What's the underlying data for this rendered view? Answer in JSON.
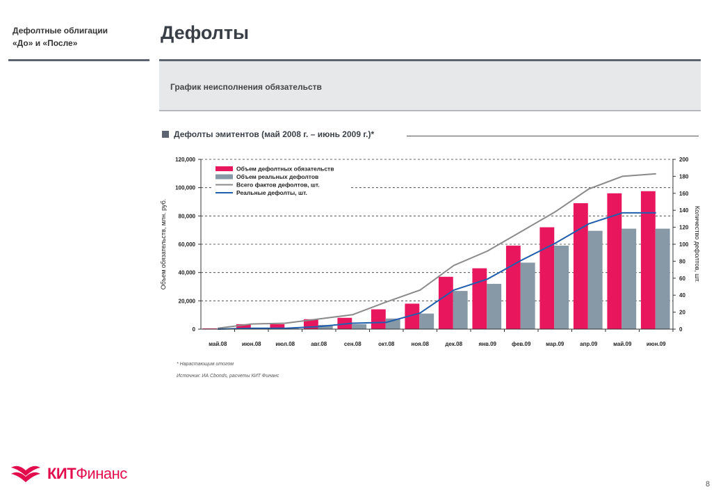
{
  "header": {
    "section_line1": "Дефолтные облигации",
    "section_line2": "«До» и «После»",
    "title": "Дефолты",
    "subtitle": "График неисполнения обязательств"
  },
  "chart_heading": "Дефолты эмитентов (май 2008 г. – июнь 2009 г.)*",
  "chart_data": {
    "type": "bar",
    "title": "Дефолты эмитентов (май 2008 г. – июнь 2009 г.)*",
    "categories": [
      "май.08",
      "июн.08",
      "июл.08",
      "авг.08",
      "сен.08",
      "окт.08",
      "ноя.08",
      "дек.08",
      "янв.09",
      "фев.09",
      "мар.09",
      "апр.09",
      "май.09",
      "июн.09"
    ],
    "ylabel_left": "Объем обязательств, млн. руб.",
    "ylabel_right": "Количество дефолтов, шт.",
    "ylim_left": [
      0,
      120000
    ],
    "ylim_right": [
      0,
      200
    ],
    "left_ticks": [
      "0",
      "20,000",
      "40,000",
      "60,000",
      "80,000",
      "100,000",
      "120,000"
    ],
    "right_ticks": [
      "0",
      "20",
      "40",
      "60",
      "80",
      "100",
      "120",
      "140",
      "160",
      "180",
      "200"
    ],
    "series": [
      {
        "name": "Объем дефолтных обязательств",
        "kind": "bar",
        "axis": "left",
        "color": "#e8175d",
        "values": [
          500,
          3500,
          3500,
          7000,
          8000,
          14000,
          18000,
          37000,
          43000,
          59000,
          72000,
          89000,
          96000,
          97500
        ]
      },
      {
        "name": "Объем реальных дефолтов",
        "kind": "bar",
        "axis": "left",
        "color": "#8798a6",
        "values": [
          0,
          500,
          500,
          3000,
          3500,
          7500,
          11000,
          27000,
          32000,
          47000,
          59000,
          69500,
          71000,
          71000
        ]
      },
      {
        "name": "Всего фактов дефолтов, шт.",
        "kind": "line",
        "axis": "right",
        "color": "#8a8a8a",
        "values": [
          1,
          6,
          7,
          12,
          17,
          32,
          46,
          75,
          92,
          115,
          138,
          165,
          180,
          183
        ]
      },
      {
        "name": "Реальные дефолты, шт.",
        "kind": "line",
        "axis": "right",
        "color": "#1f5fae",
        "values": [
          0,
          1,
          1,
          3,
          7,
          8,
          19,
          46,
          59,
          81,
          101,
          124,
          137,
          137
        ]
      }
    ]
  },
  "notes": {
    "footnote": "* Нарастающим итогом",
    "source": "Источник: ИА Cbonds, расчеты КИТ Финанс"
  },
  "footer": {
    "logo_bold": "КИТ",
    "logo_regular": "Финанс",
    "page_number": "8"
  }
}
